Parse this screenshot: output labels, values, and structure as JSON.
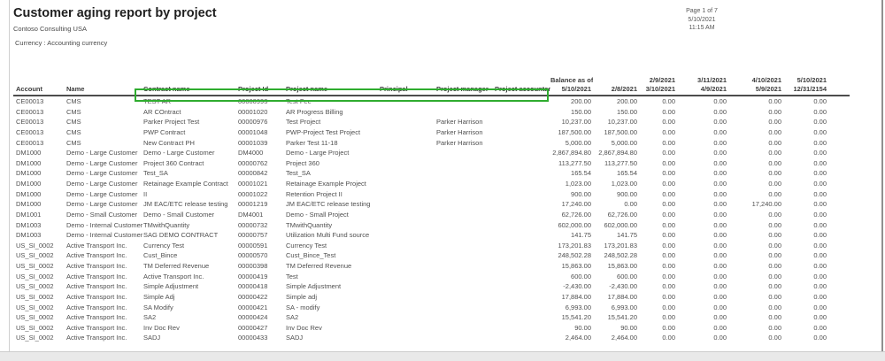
{
  "report": {
    "title": "Customer aging report by project",
    "company": "Contoso Consulting USA",
    "currency_label": "Currency : Accounting currency",
    "page_number": "Page 1 of 7",
    "print_date": "5/10/2021",
    "print_time": "11:15 AM"
  },
  "highlight_color": "#2fac2f",
  "table": {
    "columns": [
      {
        "key": "account",
        "line1": "",
        "line2": "Account",
        "align": "left",
        "highlighted": false
      },
      {
        "key": "name",
        "line1": "",
        "line2": "Name",
        "align": "left",
        "highlighted": false
      },
      {
        "key": "contract-name",
        "line1": "",
        "line2": "Contract name",
        "align": "left",
        "highlighted": true
      },
      {
        "key": "project-id",
        "line1": "",
        "line2": "Project Id",
        "align": "left",
        "highlighted": true
      },
      {
        "key": "project-name",
        "line1": "",
        "line2": "Project name",
        "align": "left",
        "highlighted": true
      },
      {
        "key": "principal",
        "line1": "",
        "line2": "Principal",
        "align": "left",
        "highlighted": true
      },
      {
        "key": "project-manager",
        "line1": "",
        "line2": "Project manager",
        "align": "left",
        "highlighted": true
      },
      {
        "key": "project-accountant",
        "line1": "",
        "line2": "Project accountant",
        "align": "left",
        "highlighted": true
      },
      {
        "key": "balance-as-of",
        "line1": "Balance as of",
        "line2": "5/10/2021",
        "align": "right",
        "highlighted": false
      },
      {
        "key": "bucket-2-8-2021",
        "line1": "",
        "line2": "2/8/2021",
        "align": "right",
        "highlighted": false
      },
      {
        "key": "bucket-3-10-2021",
        "line1": "2/9/2021",
        "line2": "3/10/2021",
        "align": "right",
        "highlighted": false
      },
      {
        "key": "bucket-4-9-2021",
        "line1": "3/11/2021",
        "line2": "4/9/2021",
        "align": "right",
        "highlighted": false
      },
      {
        "key": "bucket-5-9-2021",
        "line1": "4/10/2021",
        "line2": "5/9/2021",
        "align": "right",
        "highlighted": false
      },
      {
        "key": "bucket-12-31-2154",
        "line1": "5/10/2021",
        "line2": "12/31/2154",
        "align": "right",
        "highlighted": false
      }
    ],
    "rows": [
      [
        "CE00013",
        "CMS",
        "TEST AR",
        "00000993",
        "Test Fee",
        "",
        "",
        "",
        "200.00",
        "200.00",
        "0.00",
        "0.00",
        "0.00",
        "0.00"
      ],
      [
        "CE00013",
        "CMS",
        "AR COntract",
        "00001020",
        "AR Progress Billing",
        "",
        "",
        "",
        "150.00",
        "150.00",
        "0.00",
        "0.00",
        "0.00",
        "0.00"
      ],
      [
        "CE00013",
        "CMS",
        "Parker Project Test",
        "00000976",
        "Test Project",
        "",
        "Parker Harrison",
        "",
        "10,237.00",
        "10,237.00",
        "0.00",
        "0.00",
        "0.00",
        "0.00"
      ],
      [
        "CE00013",
        "CMS",
        "PWP Contract",
        "00001048",
        "PWP-Project Test Project",
        "",
        "Parker Harrison",
        "",
        "187,500.00",
        "187,500.00",
        "0.00",
        "0.00",
        "0.00",
        "0.00"
      ],
      [
        "CE00013",
        "CMS",
        "New Contract PH",
        "00001039",
        "Parker Test 11-18",
        "",
        "Parker Harrison",
        "",
        "5,000.00",
        "5,000.00",
        "0.00",
        "0.00",
        "0.00",
        "0.00"
      ],
      [
        "DM1000",
        "Demo - Large Customer",
        "Demo - Large Customer",
        "DM4000",
        "Demo - Large Project",
        "",
        "",
        "",
        "2,867,894.80",
        "2,867,894.80",
        "0.00",
        "0.00",
        "0.00",
        "0.00"
      ],
      [
        "DM1000",
        "Demo - Large Customer",
        "Project 360 Contract",
        "00000762",
        "Project 360",
        "",
        "",
        "",
        "113,277.50",
        "113,277.50",
        "0.00",
        "0.00",
        "0.00",
        "0.00"
      ],
      [
        "DM1000",
        "Demo - Large Customer",
        "Test_SA",
        "00000842",
        "Test_SA",
        "",
        "",
        "",
        "165.54",
        "165.54",
        "0.00",
        "0.00",
        "0.00",
        "0.00"
      ],
      [
        "DM1000",
        "Demo - Large Customer",
        "Retainage Example Contract",
        "00001021",
        "Retainage Example Project",
        "",
        "",
        "",
        "1,023.00",
        "1,023.00",
        "0.00",
        "0.00",
        "0.00",
        "0.00"
      ],
      [
        "DM1000",
        "Demo - Large Customer",
        "II",
        "00001022",
        "Retention Project II",
        "",
        "",
        "",
        "900.00",
        "900.00",
        "0.00",
        "0.00",
        "0.00",
        "0.00"
      ],
      [
        "DM1000",
        "Demo - Large Customer",
        "JM EAC/ETC release testing",
        "00001219",
        "JM EAC/ETC release testing",
        "",
        "",
        "",
        "17,240.00",
        "0.00",
        "0.00",
        "0.00",
        "17,240.00",
        "0.00"
      ],
      [
        "DM1001",
        "Demo - Small Customer",
        "Demo - Small Customer",
        "DM4001",
        "Demo - Small Project",
        "",
        "",
        "",
        "62,726.00",
        "62,726.00",
        "0.00",
        "0.00",
        "0.00",
        "0.00"
      ],
      [
        "DM1003",
        "Demo - Internal Customer",
        "TMwithQuantity",
        "00000732",
        "TMwithQuantity",
        "",
        "",
        "",
        "602,000.00",
        "602,000.00",
        "0.00",
        "0.00",
        "0.00",
        "0.00"
      ],
      [
        "DM1003",
        "Demo - Internal Customer",
        "SAG DEMO CONTRACT",
        "00000757",
        "Utilization Multi Fund source",
        "",
        "",
        "",
        "141.75",
        "141.75",
        "0.00",
        "0.00",
        "0.00",
        "0.00"
      ],
      [
        "US_SI_0002",
        "Active Transport Inc.",
        "Currency Test",
        "00000591",
        "Currency Test",
        "",
        "",
        "",
        "173,201.83",
        "173,201.83",
        "0.00",
        "0.00",
        "0.00",
        "0.00"
      ],
      [
        "US_SI_0002",
        "Active Transport Inc.",
        "Cust_Bince",
        "00000570",
        "Cust_Bince_Test",
        "",
        "",
        "",
        "248,502.28",
        "248,502.28",
        "0.00",
        "0.00",
        "0.00",
        "0.00"
      ],
      [
        "US_SI_0002",
        "Active Transport Inc.",
        "TM Deferred Revenue",
        "00000398",
        "TM Deferred Revenue",
        "",
        "",
        "",
        "15,863.00",
        "15,863.00",
        "0.00",
        "0.00",
        "0.00",
        "0.00"
      ],
      [
        "US_SI_0002",
        "Active Transport Inc.",
        "Active Transport Inc.",
        "00000419",
        "Test",
        "",
        "",
        "",
        "600.00",
        "600.00",
        "0.00",
        "0.00",
        "0.00",
        "0.00"
      ],
      [
        "US_SI_0002",
        "Active Transport Inc.",
        "Simple Adjustment",
        "00000418",
        "Simple Adjustment",
        "",
        "",
        "",
        "-2,430.00",
        "-2,430.00",
        "0.00",
        "0.00",
        "0.00",
        "0.00"
      ],
      [
        "US_SI_0002",
        "Active Transport Inc.",
        "Simple Adj",
        "00000422",
        "Simple adj",
        "",
        "",
        "",
        "17,884.00",
        "17,884.00",
        "0.00",
        "0.00",
        "0.00",
        "0.00"
      ],
      [
        "US_SI_0002",
        "Active Transport Inc.",
        "SA Modify",
        "00000421",
        "SA - modify",
        "",
        "",
        "",
        "6,993.00",
        "6,993.00",
        "0.00",
        "0.00",
        "0.00",
        "0.00"
      ],
      [
        "US_SI_0002",
        "Active Transport Inc.",
        "SA2",
        "00000424",
        "SA2",
        "",
        "",
        "",
        "15,541.20",
        "15,541.20",
        "0.00",
        "0.00",
        "0.00",
        "0.00"
      ],
      [
        "US_SI_0002",
        "Active Transport Inc.",
        "Inv Doc Rev",
        "00000427",
        "Inv Doc Rev",
        "",
        "",
        "",
        "90.00",
        "90.00",
        "0.00",
        "0.00",
        "0.00",
        "0.00"
      ],
      [
        "US_SI_0002",
        "Active Transport Inc.",
        "SADJ",
        "00000433",
        "SADJ",
        "",
        "",
        "",
        "2,464.00",
        "2,464.00",
        "0.00",
        "0.00",
        "0.00",
        "0.00"
      ]
    ]
  }
}
